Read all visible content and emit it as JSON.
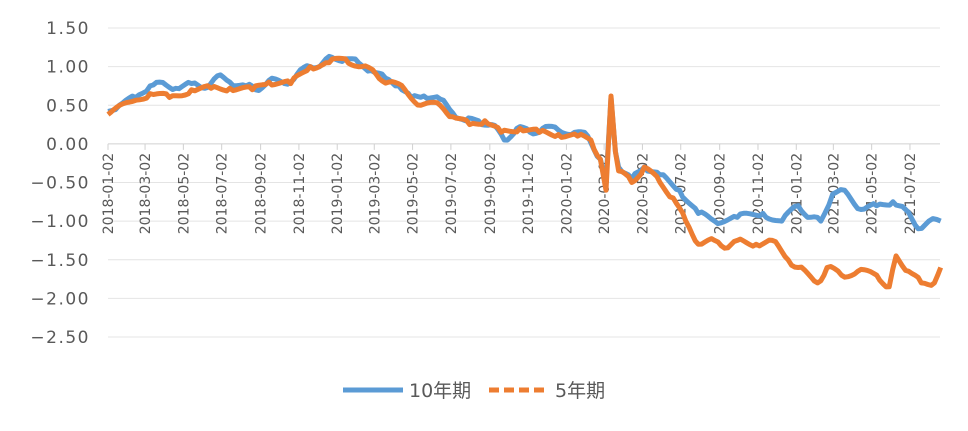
{
  "chart_data": {
    "type": "line",
    "title": "",
    "xlabel": "",
    "ylabel": "",
    "ylim": [
      -2.5,
      1.5
    ],
    "yticks": [
      "1.50",
      "1.00",
      "0.50",
      "0.00",
      "−0.50",
      "−1.00",
      "−1.50",
      "−2.00",
      "−2.50"
    ],
    "ytick_values": [
      1.5,
      1.0,
      0.5,
      0.0,
      -0.5,
      -1.0,
      -1.5,
      -2.0,
      -2.5
    ],
    "xticks": [
      "2018-01-02",
      "2018-03-02",
      "2018-05-02",
      "2018-07-02",
      "2018-09-02",
      "2018-11-02",
      "2019-01-02",
      "2019-03-02",
      "2019-05-02",
      "2019-07-02",
      "2019-09-02",
      "2019-11-02",
      "2020-01-02",
      "2020-03-02",
      "2020-05-02",
      "2020-07-02",
      "2020-09-02",
      "2020-11-02",
      "2021-01-02",
      "2021-03-02",
      "2021-05-02",
      "2021-07-02"
    ],
    "legend_placement": "bottom",
    "grid": true,
    "series": [
      {
        "name": "10年期",
        "color": "#5b9bd5",
        "style": "solid",
        "points": [
          [
            "2018-01-02",
            0.42
          ],
          [
            "2018-01-20",
            0.5
          ],
          [
            "2018-02-15",
            0.6
          ],
          [
            "2018-03-10",
            0.75
          ],
          [
            "2018-03-25",
            0.8
          ],
          [
            "2018-04-20",
            0.72
          ],
          [
            "2018-05-15",
            0.78
          ],
          [
            "2018-06-05",
            0.72
          ],
          [
            "2018-06-25",
            0.88
          ],
          [
            "2018-07-15",
            0.8
          ],
          [
            "2018-08-10",
            0.75
          ],
          [
            "2018-08-25",
            0.7
          ],
          [
            "2018-09-15",
            0.82
          ],
          [
            "2018-10-10",
            0.78
          ],
          [
            "2018-10-30",
            0.9
          ],
          [
            "2018-11-20",
            1.0
          ],
          [
            "2018-12-10",
            1.05
          ],
          [
            "2018-12-25",
            1.12
          ],
          [
            "2019-01-15",
            1.1
          ],
          [
            "2019-02-05",
            1.05
          ],
          [
            "2019-02-25",
            0.95
          ],
          [
            "2019-03-20",
            0.85
          ],
          [
            "2019-04-10",
            0.75
          ],
          [
            "2019-04-30",
            0.6
          ],
          [
            "2019-05-20",
            0.62
          ],
          [
            "2019-06-15",
            0.58
          ],
          [
            "2019-07-05",
            0.4
          ],
          [
            "2019-07-25",
            0.3
          ],
          [
            "2019-08-15",
            0.3
          ],
          [
            "2019-09-05",
            0.25
          ],
          [
            "2019-09-25",
            0.05
          ],
          [
            "2019-10-15",
            0.2
          ],
          [
            "2019-11-05",
            0.15
          ],
          [
            "2019-11-25",
            0.2
          ],
          [
            "2019-12-20",
            0.18
          ],
          [
            "2020-01-15",
            0.15
          ],
          [
            "2020-02-05",
            0.1
          ],
          [
            "2020-02-25",
            -0.2
          ],
          [
            "2020-03-05",
            -0.5
          ],
          [
            "2020-03-13",
            0.6
          ],
          [
            "2020-03-20",
            -0.1
          ],
          [
            "2020-03-25",
            -0.3
          ],
          [
            "2020-04-15",
            -0.45
          ],
          [
            "2020-05-05",
            -0.3
          ],
          [
            "2020-05-30",
            -0.4
          ],
          [
            "2020-06-30",
            -0.6
          ],
          [
            "2020-07-30",
            -0.9
          ],
          [
            "2020-08-25",
            -1.0
          ],
          [
            "2020-09-30",
            -0.95
          ],
          [
            "2020-11-10",
            -0.9
          ],
          [
            "2020-12-10",
            -1.0
          ],
          [
            "2021-01-05",
            -0.8
          ],
          [
            "2021-01-25",
            -0.95
          ],
          [
            "2021-02-10",
            -1.0
          ],
          [
            "2021-03-01",
            -0.65
          ],
          [
            "2021-03-20",
            -0.6
          ],
          [
            "2021-04-15",
            -0.85
          ],
          [
            "2021-05-10",
            -0.8
          ],
          [
            "2021-06-05",
            -0.75
          ],
          [
            "2021-06-25",
            -0.85
          ],
          [
            "2021-07-15",
            -1.1
          ],
          [
            "2021-08-01",
            -1.0
          ],
          [
            "2021-08-20",
            -1.0
          ]
        ]
      },
      {
        "name": "5年期",
        "color": "#ed7d31",
        "style": "dashed",
        "points": [
          [
            "2018-01-02",
            0.38
          ],
          [
            "2018-02-10",
            0.55
          ],
          [
            "2018-03-10",
            0.65
          ],
          [
            "2018-04-10",
            0.6
          ],
          [
            "2018-05-15",
            0.7
          ],
          [
            "2018-06-15",
            0.72
          ],
          [
            "2018-07-15",
            0.72
          ],
          [
            "2018-08-20",
            0.7
          ],
          [
            "2018-09-15",
            0.8
          ],
          [
            "2018-10-20",
            0.78
          ],
          [
            "2018-11-20",
            1.0
          ],
          [
            "2018-12-20",
            1.05
          ],
          [
            "2019-01-15",
            1.1
          ],
          [
            "2019-02-10",
            1.0
          ],
          [
            "2019-03-05",
            0.9
          ],
          [
            "2019-03-25",
            0.8
          ],
          [
            "2019-04-20",
            0.7
          ],
          [
            "2019-05-15",
            0.5
          ],
          [
            "2019-06-15",
            0.5
          ],
          [
            "2019-07-05",
            0.35
          ],
          [
            "2019-08-01",
            0.25
          ],
          [
            "2019-08-25",
            0.3
          ],
          [
            "2019-09-20",
            0.15
          ],
          [
            "2019-10-20",
            0.2
          ],
          [
            "2019-11-20",
            0.15
          ],
          [
            "2019-12-20",
            0.12
          ],
          [
            "2020-01-20",
            0.1
          ],
          [
            "2020-02-10",
            0.05
          ],
          [
            "2020-02-25",
            -0.2
          ],
          [
            "2020-03-05",
            -0.6
          ],
          [
            "2020-03-13",
            0.62
          ],
          [
            "2020-03-20",
            -0.1
          ],
          [
            "2020-03-25",
            -0.35
          ],
          [
            "2020-04-15",
            -0.5
          ],
          [
            "2020-05-05",
            -0.3
          ],
          [
            "2020-05-30",
            -0.5
          ],
          [
            "2020-06-20",
            -0.7
          ],
          [
            "2020-07-10",
            -1.0
          ],
          [
            "2020-07-30",
            -1.3
          ],
          [
            "2020-08-25",
            -1.25
          ],
          [
            "2020-09-10",
            -1.35
          ],
          [
            "2020-09-30",
            -1.25
          ],
          [
            "2020-10-30",
            -1.3
          ],
          [
            "2020-11-25",
            -1.25
          ],
          [
            "2020-12-20",
            -1.5
          ],
          [
            "2021-01-05",
            -1.6
          ],
          [
            "2021-02-05",
            -1.8
          ],
          [
            "2021-02-20",
            -1.6
          ],
          [
            "2021-03-15",
            -1.7
          ],
          [
            "2021-04-10",
            -1.65
          ],
          [
            "2021-05-10",
            -1.7
          ],
          [
            "2021-05-30",
            -1.85
          ],
          [
            "2021-06-10",
            -1.45
          ],
          [
            "2021-06-30",
            -1.65
          ],
          [
            "2021-07-20",
            -1.8
          ],
          [
            "2021-08-10",
            -1.8
          ],
          [
            "2021-08-20",
            -1.6
          ]
        ]
      }
    ]
  }
}
